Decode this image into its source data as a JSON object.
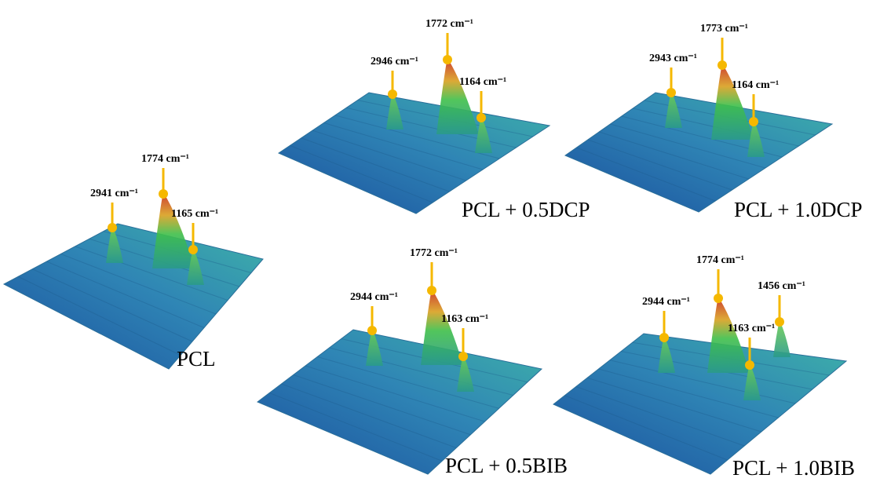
{
  "panels": [
    {
      "label": "PCL",
      "peaks": [
        {
          "label": "2941 cm⁻¹"
        },
        {
          "label": "1774 cm⁻¹"
        },
        {
          "label": "1165 cm⁻¹"
        }
      ]
    },
    {
      "label": "PCL + 0.5DCP",
      "peaks": [
        {
          "label": "2946 cm⁻¹"
        },
        {
          "label": "1772 cm⁻¹"
        },
        {
          "label": "1164 cm⁻¹"
        }
      ]
    },
    {
      "label": "PCL + 1.0DCP",
      "peaks": [
        {
          "label": "2943 cm⁻¹"
        },
        {
          "label": "1773 cm⁻¹"
        },
        {
          "label": "1164 cm⁻¹"
        }
      ]
    },
    {
      "label": "PCL + 0.5BIB",
      "peaks": [
        {
          "label": "2944 cm⁻¹"
        },
        {
          "label": "1772 cm⁻¹"
        },
        {
          "label": "1163 cm⁻¹"
        }
      ]
    },
    {
      "label": "PCL + 1.0BIB",
      "peaks": [
        {
          "label": "2944 cm⁻¹"
        },
        {
          "label": "1774 cm⁻¹"
        },
        {
          "label": "1163 cm⁻¹"
        },
        {
          "label": "1456 cm⁻¹"
        }
      ]
    }
  ]
}
